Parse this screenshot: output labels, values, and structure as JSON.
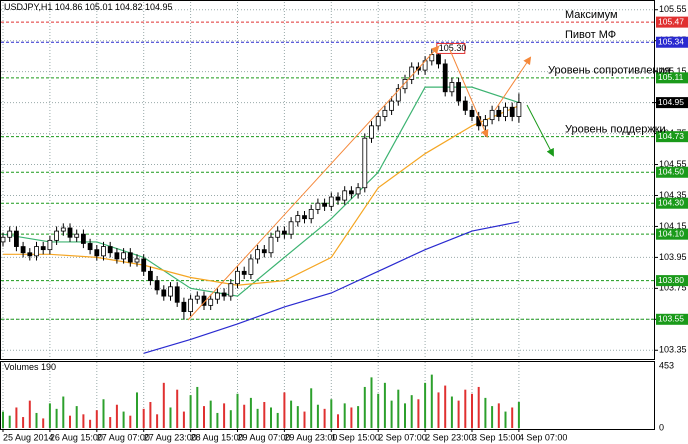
{
  "chart_data": {
    "type": "candlestick",
    "symbol": "USDJPY,H1",
    "categories": [
      "25 Aug 2014",
      null,
      null,
      null,
      null,
      null,
      null,
      "26 Aug 15:00",
      null,
      null,
      null,
      null,
      null,
      null,
      "27 Aug 07:00",
      null,
      null,
      null,
      null,
      null,
      null,
      "27 Aug 23:00",
      null,
      null,
      null,
      null,
      null,
      null,
      "28 Aug 15:00",
      null,
      null,
      null,
      null,
      null,
      null,
      "29 Aug 07:00",
      null,
      null,
      null,
      null,
      null,
      null,
      "29 Aug 23:00",
      null,
      null,
      null,
      null,
      null,
      null,
      "1 Sep 15:00",
      null,
      null,
      null,
      null,
      null,
      null,
      "2 Sep 07:00",
      null,
      null,
      null,
      null,
      null,
      null,
      "2 Sep 23:00",
      null,
      null,
      null,
      null,
      null,
      null,
      "3 Sep 15:00",
      null,
      null,
      null,
      null,
      null,
      null,
      "4 Sep 07:00"
    ],
    "open": [
      104.05,
      104.08,
      104.12,
      104.02,
      103.98,
      103.96,
      104.02,
      104.0,
      104.06,
      104.12,
      104.14,
      104.08,
      104.1,
      104.04,
      104.0,
      103.96,
      104.02,
      103.98,
      103.94,
      103.98,
      103.92,
      103.94,
      103.86,
      103.8,
      103.74,
      103.7,
      103.76,
      103.66,
      103.6,
      103.68,
      103.7,
      103.64,
      103.68,
      103.72,
      103.7,
      103.78,
      103.86,
      103.84,
      103.94,
      104.0,
      103.98,
      104.08,
      104.12,
      104.1,
      104.18,
      104.22,
      104.2,
      104.26,
      104.3,
      104.28,
      104.34,
      104.32,
      104.38,
      104.36,
      104.4,
      104.72,
      104.8,
      104.86,
      104.9,
      104.96,
      105.04,
      105.1,
      105.18,
      105.16,
      105.22,
      105.26,
      105.2,
      105.02,
      105.08,
      104.96,
      104.9,
      104.86,
      104.8,
      104.84,
      104.9,
      104.86,
      104.92,
      104.86
    ],
    "high": [
      104.11,
      104.15,
      104.15,
      104.05,
      104.01,
      104.05,
      104.05,
      104.09,
      104.15,
      104.17,
      104.17,
      104.13,
      104.13,
      104.07,
      104.03,
      104.05,
      104.05,
      104.01,
      104.01,
      104.01,
      103.97,
      103.97,
      103.89,
      103.83,
      103.77,
      103.79,
      103.79,
      103.69,
      103.71,
      103.73,
      103.73,
      103.71,
      103.75,
      103.75,
      103.81,
      103.89,
      103.89,
      103.97,
      104.03,
      104.03,
      104.11,
      104.15,
      104.15,
      104.21,
      104.25,
      104.25,
      104.29,
      104.33,
      104.33,
      104.37,
      104.37,
      104.41,
      104.41,
      104.43,
      104.75,
      104.83,
      104.89,
      104.93,
      104.99,
      105.07,
      105.13,
      105.21,
      105.21,
      105.25,
      105.3,
      105.29,
      105.23,
      105.11,
      105.11,
      104.99,
      104.93,
      104.89,
      104.87,
      104.93,
      104.93,
      104.95,
      104.95,
      105.01
    ],
    "low": [
      104.02,
      104.05,
      103.99,
      103.95,
      103.93,
      103.93,
      103.97,
      103.97,
      104.03,
      104.09,
      104.05,
      104.05,
      104.01,
      103.97,
      103.93,
      103.93,
      103.95,
      103.91,
      103.91,
      103.89,
      103.89,
      103.83,
      103.77,
      103.71,
      103.67,
      103.67,
      103.63,
      103.55,
      103.57,
      103.65,
      103.61,
      103.61,
      103.65,
      103.67,
      103.67,
      103.75,
      103.81,
      103.81,
      103.91,
      103.95,
      103.95,
      104.05,
      104.07,
      104.07,
      104.15,
      104.17,
      104.17,
      104.23,
      104.25,
      104.25,
      104.29,
      104.29,
      104.33,
      104.33,
      104.37,
      104.69,
      104.77,
      104.83,
      104.87,
      104.93,
      105.01,
      105.07,
      105.13,
      105.13,
      105.19,
      105.17,
      104.99,
      104.99,
      104.93,
      104.87,
      104.83,
      104.77,
      104.73,
      104.81,
      104.83,
      104.83,
      104.83,
      104.82
    ],
    "close": [
      104.08,
      104.12,
      104.02,
      103.98,
      103.96,
      104.02,
      104.0,
      104.06,
      104.12,
      104.14,
      104.08,
      104.1,
      104.04,
      104.0,
      103.96,
      104.02,
      103.98,
      103.94,
      103.98,
      103.92,
      103.94,
      103.86,
      103.8,
      103.74,
      103.7,
      103.76,
      103.66,
      103.6,
      103.68,
      103.7,
      103.64,
      103.68,
      103.72,
      103.7,
      103.78,
      103.86,
      103.84,
      103.94,
      104.0,
      103.98,
      104.08,
      104.12,
      104.1,
      104.18,
      104.22,
      104.2,
      104.26,
      104.3,
      104.28,
      104.34,
      104.32,
      104.38,
      104.36,
      104.4,
      104.72,
      104.8,
      104.86,
      104.9,
      104.96,
      105.04,
      105.1,
      105.18,
      105.16,
      105.22,
      105.26,
      105.2,
      105.02,
      105.08,
      104.96,
      104.9,
      104.86,
      104.8,
      104.84,
      104.9,
      104.86,
      104.92,
      104.86,
      104.95
    ],
    "ma_x": [
      0,
      7,
      14,
      21,
      28,
      35,
      42,
      49,
      56,
      63,
      70,
      77
    ],
    "moving_averages": [
      {
        "color": "#3cb371",
        "values": [
          104.1,
          104.05,
          104.05,
          103.95,
          103.75,
          103.7,
          103.95,
          104.2,
          104.5,
          105.05,
          105.05,
          104.95
        ]
      },
      {
        "color": "#f5a623",
        "values": [
          103.97,
          103.97,
          103.95,
          103.9,
          103.82,
          103.77,
          103.8,
          103.95,
          104.4,
          104.62,
          104.8,
          104.93
        ]
      },
      {
        "color": "#2a2ad0",
        "values": [
          null,
          null,
          null,
          103.33,
          103.42,
          103.52,
          103.63,
          103.72,
          103.86,
          104.0,
          104.12,
          104.18
        ]
      }
    ],
    "ylim": [
      103.3,
      105.6
    ],
    "yticks": [
      103.35,
      103.55,
      103.75,
      103.95,
      104.15,
      104.35,
      104.55,
      104.75,
      104.95,
      105.15,
      105.35,
      105.55
    ],
    "grid": true,
    "levels": [
      {
        "value": 105.47,
        "text": "Максимум",
        "color": "#e03030"
      },
      {
        "value": 105.34,
        "text": "Пивот МФ",
        "color": "#2a2ad0"
      },
      {
        "value": 105.11,
        "text": "Уровень сопротивления",
        "color": "#1a9a1a"
      },
      {
        "value": 104.73,
        "text": "Уровень поддержки",
        "color": "#1a9a1a"
      },
      {
        "value": 104.5,
        "value_label": "104.50",
        "color": "#1a9a1a"
      },
      {
        "value": 104.3,
        "value_label": "104.30",
        "color": "#1a9a1a"
      },
      {
        "value": 104.1,
        "value_label": "104.10",
        "color": "#1a9a1a"
      },
      {
        "value": 103.8,
        "value_label": "103.80",
        "color": "#1a9a1a"
      },
      {
        "value": 103.55,
        "color": "#1a9a1a"
      }
    ],
    "annotation": {
      "value": 105.3,
      "label": "105.30"
    },
    "volume_title": "Volumes",
    "volumes": [
      120,
      90,
      150,
      80,
      200,
      110,
      70,
      180,
      140,
      230,
      90,
      160,
      100,
      60,
      130,
      210,
      80,
      170,
      120,
      90,
      260,
      140,
      190,
      100,
      330,
      150,
      280,
      120,
      240,
      300,
      160,
      200,
      110,
      180,
      130,
      250,
      170,
      220,
      140,
      190,
      150,
      110,
      260,
      200,
      160,
      120,
      290,
      170,
      140,
      210,
      100,
      180,
      150,
      160,
      300,
      370,
      250,
      330,
      200,
      280,
      180,
      240,
      210,
      330,
      390,
      260,
      310,
      230,
      200,
      280,
      250,
      300,
      220,
      160,
      180,
      120,
      150,
      190
    ],
    "volume_ylim": [
      0,
      453
    ],
    "volume_yticks": [
      0,
      453
    ]
  }
}
